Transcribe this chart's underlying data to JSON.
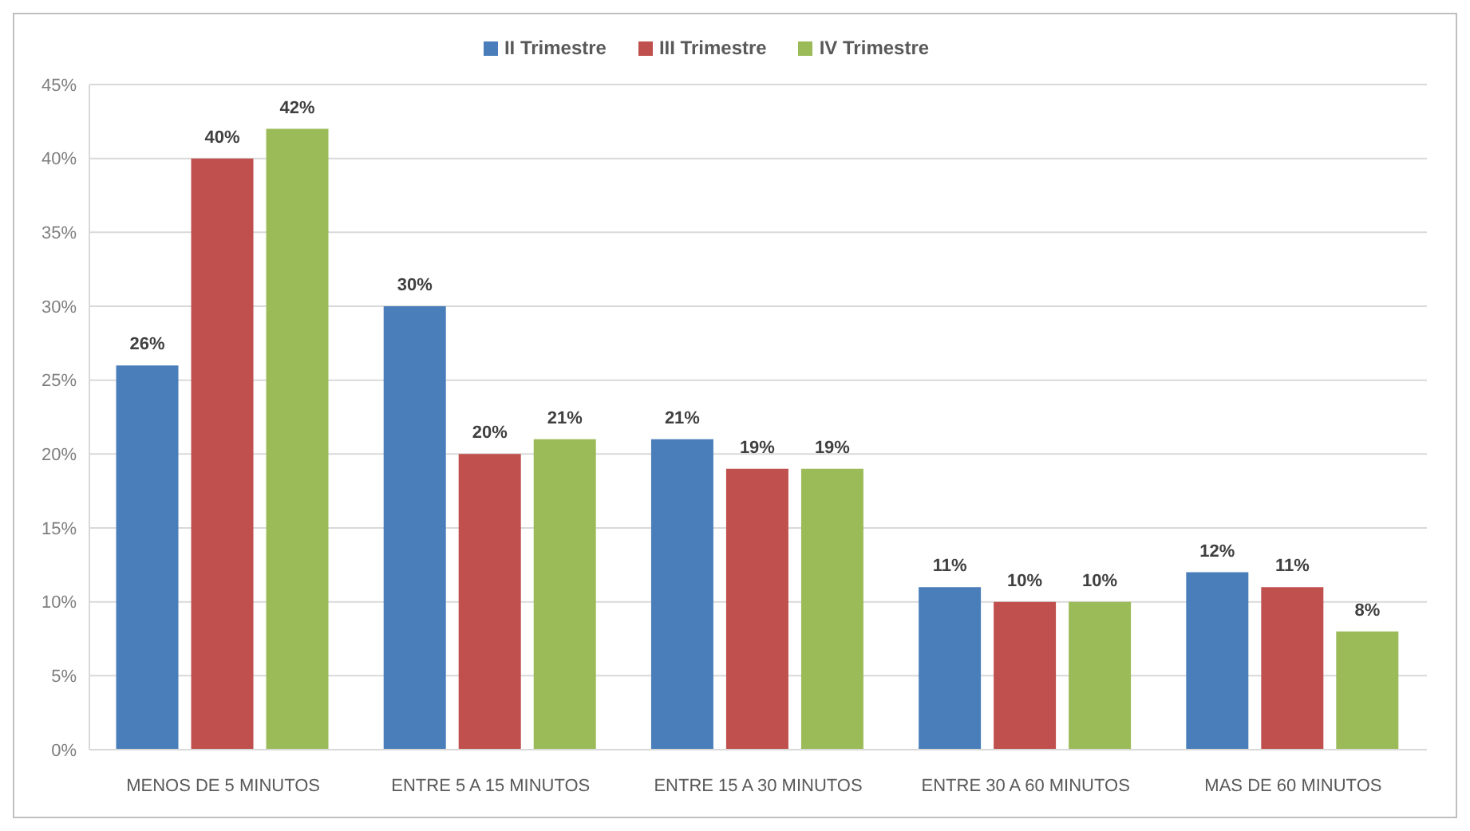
{
  "chart_data": {
    "type": "bar",
    "categories": [
      "MENOS DE 5 MINUTOS",
      "ENTRE 5  A 15 MINUTOS",
      "ENTRE 15 A 30 MINUTOS",
      "ENTRE 30 A 60 MINUTOS",
      "MAS DE 60 MINUTOS"
    ],
    "series": [
      {
        "name": "II Trimestre",
        "color": "#4a7ebb",
        "values": [
          26,
          30,
          21,
          11,
          12
        ],
        "value_labels": [
          "26%",
          "30%",
          "21%",
          "11%",
          "12%"
        ]
      },
      {
        "name": "III Trimestre",
        "color": "#c0504d",
        "values": [
          40,
          20,
          19,
          10,
          11
        ],
        "value_labels": [
          "40%",
          "20%",
          "19%",
          "10%",
          "11%"
        ]
      },
      {
        "name": "IV Trimestre",
        "color": "#9bbb59",
        "values": [
          42,
          21,
          19,
          10,
          8
        ],
        "value_labels": [
          "42%",
          "21%",
          "19%",
          "10%",
          "8%"
        ]
      }
    ],
    "ylim": [
      0,
      45
    ],
    "yticks": [
      {
        "value": 0,
        "label": "0%"
      },
      {
        "value": 5,
        "label": "5%"
      },
      {
        "value": 10,
        "label": "10%"
      },
      {
        "value": 15,
        "label": "15%"
      },
      {
        "value": 20,
        "label": "20%"
      },
      {
        "value": 25,
        "label": "25%"
      },
      {
        "value": 30,
        "label": "30%"
      },
      {
        "value": 35,
        "label": "35%"
      },
      {
        "value": 40,
        "label": "40%"
      },
      {
        "value": 45,
        "label": "45%"
      }
    ],
    "grid": "y",
    "legend": "top"
  }
}
